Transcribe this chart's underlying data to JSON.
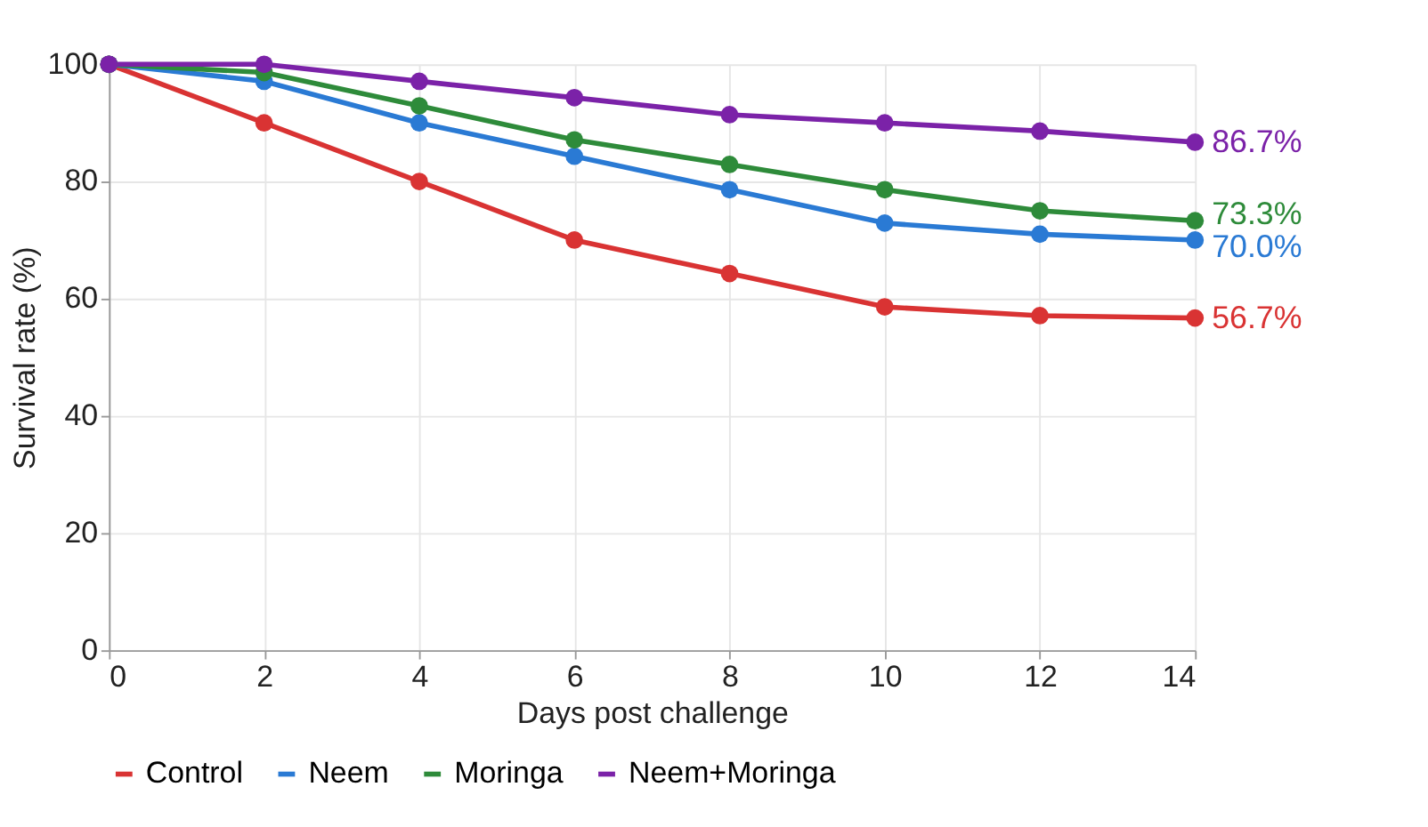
{
  "chart_data": {
    "type": "line",
    "xlabel": "Days post challenge",
    "ylabel": "Survival rate (%)",
    "x": [
      0,
      2,
      4,
      6,
      8,
      10,
      12,
      14
    ],
    "series": [
      {
        "name": "Control",
        "color": "#d93333",
        "values": [
          100,
          90,
          80,
          70,
          64.3,
          58.6,
          57.1,
          56.7
        ],
        "value_labels": [
          null,
          null,
          null,
          null,
          null,
          null,
          null,
          "56.7%"
        ]
      },
      {
        "name": "Neem",
        "color": "#2a7ad4",
        "values": [
          100,
          97.1,
          90,
          84.3,
          78.6,
          72.9,
          71,
          70
        ],
        "value_labels": [
          null,
          null,
          null,
          null,
          null,
          null,
          null,
          "70.0%"
        ]
      },
      {
        "name": "Moringa",
        "color": "#2e8b3a",
        "values": [
          100,
          98.6,
          92.9,
          87.1,
          82.9,
          78.6,
          75,
          73.3
        ],
        "value_labels": [
          null,
          null,
          null,
          null,
          null,
          null,
          null,
          "73.3%"
        ]
      },
      {
        "name": "Neem+Moringa",
        "color": "#7b22a8",
        "values": [
          100,
          100,
          97.1,
          94.3,
          91.4,
          90,
          88.6,
          86.7
        ],
        "value_labels": [
          null,
          null,
          null,
          null,
          null,
          null,
          null,
          "86.7%"
        ]
      }
    ],
    "xlim": [
      0,
      14
    ],
    "xticks": [
      0,
      2,
      4,
      6,
      8,
      10,
      12,
      14
    ],
    "ylim": [
      0,
      100
    ],
    "yticks": [
      0,
      20,
      40,
      60,
      80,
      100
    ],
    "grid": true,
    "legend": "bottom",
    "marker": "circle",
    "line_style": "solid"
  }
}
